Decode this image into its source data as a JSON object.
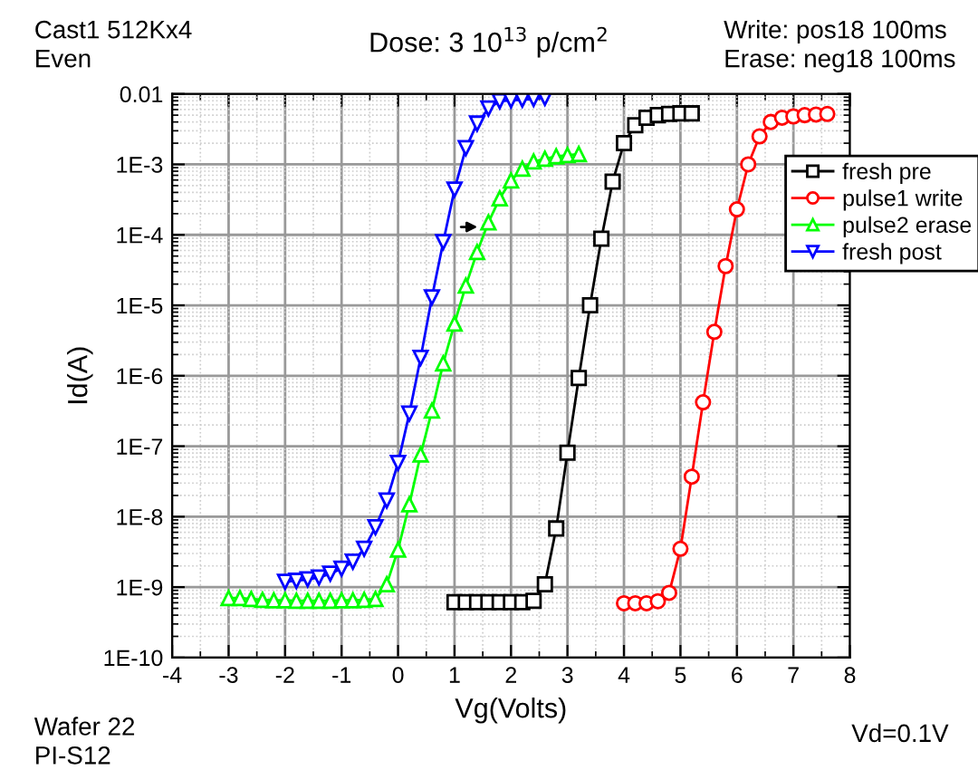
{
  "chart_data": {
    "type": "line",
    "title": "Dose: 3 10$^{13}$ p/cm$^{2}$",
    "xlabel": "Vg(Volts)",
    "ylabel": "Id(A)",
    "annotations": [
      "Cast1 512Kx4\nEven",
      "Write: pos18 100ms\nErase: neg18 100ms",
      "Wafer 22\nPI-S12",
      "Vd=0.1V"
    ],
    "log": "y",
    "grid": true,
    "legend": "top right",
    "line_style": "solid",
    "xlim": [
      -4,
      8
    ],
    "xticks": [
      -4,
      -3,
      -2,
      -1,
      0,
      1,
      2,
      3,
      4,
      5,
      6,
      7,
      8
    ],
    "ylim": [
      1e-10,
      0.01
    ],
    "yticks": [
      {
        "value": 1e-10,
        "label": "1E-10"
      },
      {
        "value": 1e-09,
        "label": "1E-9"
      },
      {
        "value": 1e-08,
        "label": "1E-8"
      },
      {
        "value": 1e-07,
        "label": "1E-7"
      },
      {
        "value": 1e-06,
        "label": "1E-6"
      },
      {
        "value": 1e-05,
        "label": "1E-5"
      },
      {
        "value": 0.0001,
        "label": "1E-4"
      },
      {
        "value": 0.001,
        "label": "1E-3"
      },
      {
        "value": 0.01,
        "label": "0.01"
      }
    ],
    "series": [
      {
        "name": "fresh pre",
        "color": "#000000",
        "marker": "square",
        "x": [
          1.0,
          1.2,
          1.4,
          1.6,
          1.8,
          2.0,
          2.2,
          2.4,
          2.6,
          2.8,
          3.0,
          3.2,
          3.4,
          3.6,
          3.8,
          4.0,
          4.2,
          4.4,
          4.6,
          4.8,
          5.0,
          5.2
        ],
        "values": [
          6.1e-10,
          6.1e-10,
          6.1e-10,
          6.1e-10,
          6.1e-10,
          6.1e-10,
          6.1e-10,
          6.4e-10,
          1.1e-09,
          6.8e-09,
          8.1e-08,
          9.3e-07,
          1e-05,
          8.8e-05,
          0.00057,
          0.002,
          0.0036,
          0.0046,
          0.005,
          0.0052,
          0.0053,
          0.0053
        ]
      },
      {
        "name": "pulse1 write",
        "color": "#ff0000",
        "marker": "circle",
        "x": [
          4.0,
          4.2,
          4.4,
          4.6,
          4.8,
          5.0,
          5.2,
          5.4,
          5.6,
          5.8,
          6.0,
          6.2,
          6.4,
          6.6,
          6.8,
          7.0,
          7.2,
          7.4,
          7.6
        ],
        "values": [
          5.9e-10,
          5.9e-10,
          5.9e-10,
          6.3e-10,
          8.3e-10,
          3.5e-09,
          3.7e-08,
          4.2e-07,
          4.2e-06,
          3.6e-05,
          0.00023,
          0.001,
          0.0025,
          0.004,
          0.0046,
          0.0048,
          0.005,
          0.0051,
          0.0052
        ]
      },
      {
        "name": "pulse2 erase",
        "color": "#00ff00",
        "marker": "triangle",
        "x": [
          -3.0,
          -2.8,
          -2.6,
          -2.4,
          -2.2,
          -2.0,
          -1.8,
          -1.6,
          -1.4,
          -1.2,
          -1.0,
          -0.8,
          -0.6,
          -0.4,
          -0.2,
          0.0,
          0.2,
          0.4,
          0.6,
          0.8,
          1.0,
          1.2,
          1.4,
          1.6,
          1.8,
          2.0,
          2.2,
          2.4,
          2.6,
          2.8,
          3.0,
          3.2
        ],
        "values": [
          7e-10,
          7e-10,
          6.8e-10,
          6.6e-10,
          6.5e-10,
          6.5e-10,
          6.4e-10,
          6.4e-10,
          6.4e-10,
          6.4e-10,
          6.5e-10,
          6.5e-10,
          6.6e-10,
          6.8e-10,
          1.1e-09,
          3.4e-09,
          1.5e-08,
          7.6e-08,
          3.2e-07,
          1.5e-06,
          5.5e-06,
          1.9e-05,
          5.7e-05,
          0.00015,
          0.00033,
          0.00059,
          0.00087,
          0.0011,
          0.0012,
          0.0013,
          0.00135,
          0.0014
        ]
      },
      {
        "name": "fresh post",
        "color": "#0000ff",
        "marker": "triangle_down",
        "x": [
          -2.0,
          -1.8,
          -1.6,
          -1.4,
          -1.2,
          -1.0,
          -0.8,
          -0.6,
          -0.4,
          -0.2,
          0.0,
          0.2,
          0.4,
          0.6,
          0.8,
          1.0,
          1.2,
          1.4,
          1.6,
          1.8,
          2.0,
          2.2,
          2.4,
          2.6
        ],
        "values": [
          1.19e-09,
          1.23e-09,
          1.29e-09,
          1.37e-09,
          1.55e-09,
          1.83e-09,
          2.3e-09,
          3.5e-09,
          7.1e-09,
          1.7e-08,
          5.8e-08,
          2.9e-07,
          1.8e-06,
          1.3e-05,
          7.9e-05,
          0.00044,
          0.0017,
          0.0038,
          0.0062,
          0.0079,
          0.0081,
          0.0083,
          0.0085,
          0.0088
        ]
      }
    ]
  }
}
